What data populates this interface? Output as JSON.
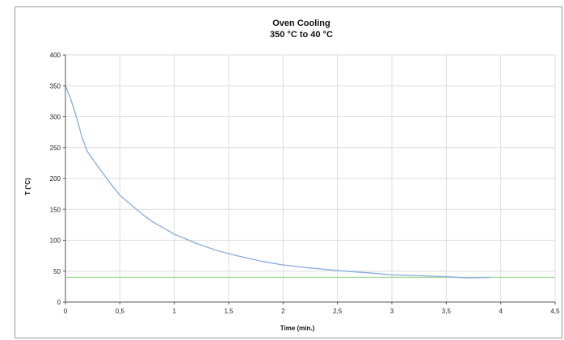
{
  "chart_data": {
    "type": "line",
    "title": "Oven Cooling",
    "subtitle": "350 °C to 40 °C",
    "xlabel": "Time (min.)",
    "ylabel": "T (°C)",
    "xlim": [
      0,
      4.5
    ],
    "ylim": [
      0,
      400
    ],
    "x_ticks": [
      {
        "value": 0,
        "label": "0"
      },
      {
        "value": 0.5,
        "label": "0,5"
      },
      {
        "value": 1,
        "label": "1"
      },
      {
        "value": 1.5,
        "label": "1,5"
      },
      {
        "value": 2,
        "label": "2"
      },
      {
        "value": 2.5,
        "label": "2,5"
      },
      {
        "value": 3,
        "label": "3"
      },
      {
        "value": 3.5,
        "label": "3,5"
      },
      {
        "value": 4,
        "label": "4"
      },
      {
        "value": 4.5,
        "label": "4,5"
      }
    ],
    "y_ticks": [
      {
        "value": 0,
        "label": "0"
      },
      {
        "value": 50,
        "label": "50"
      },
      {
        "value": 100,
        "label": "100"
      },
      {
        "value": 150,
        "label": "150"
      },
      {
        "value": 200,
        "label": "200"
      },
      {
        "value": 250,
        "label": "250"
      },
      {
        "value": 300,
        "label": "300"
      },
      {
        "value": 350,
        "label": "350"
      },
      {
        "value": 400,
        "label": "400"
      }
    ],
    "grid": true,
    "legend": "none",
    "series": [
      {
        "color": "#8fb0e0",
        "x": [
          0,
          0.05,
          0.1,
          0.15,
          0.2,
          0.3,
          0.4,
          0.5,
          0.6,
          0.7,
          0.8,
          0.9,
          1.0,
          1.2,
          1.4,
          1.6,
          1.8,
          2.0,
          2.2,
          2.5,
          2.8,
          3.0,
          3.2,
          3.5,
          3.7,
          3.9
        ],
        "values": [
          350,
          328,
          300,
          268,
          244,
          219,
          195,
          173,
          158,
          143,
          130,
          120,
          110,
          95,
          83,
          74,
          66,
          60,
          56,
          51,
          47,
          44,
          43,
          41,
          39,
          40
        ]
      },
      {
        "color": "#a8d8a0",
        "x": [
          0,
          4.5
        ],
        "values": [
          40,
          40
        ]
      }
    ]
  }
}
